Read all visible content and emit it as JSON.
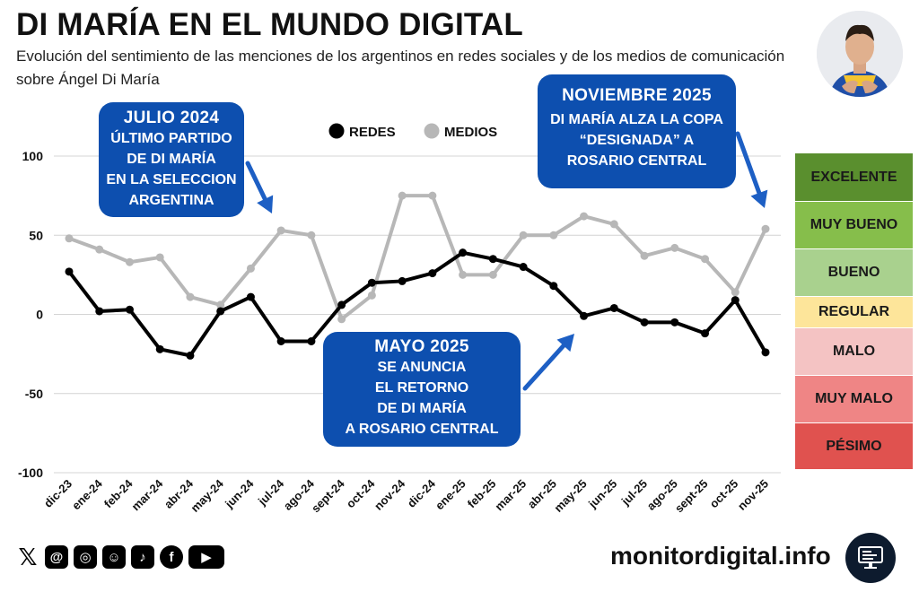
{
  "header": {
    "title": "DI MARÍA EN EL MUNDO DIGITAL",
    "subtitle": "Evolución del sentimiento de las menciones de los argentinos en redes sociales y de los medios de comunicación sobre Ángel Di María"
  },
  "chart_data": {
    "type": "line",
    "categories": [
      "dic-23",
      "ene-24",
      "feb-24",
      "mar-24",
      "abr-24",
      "may-24",
      "jun-24",
      "jul-24",
      "ago-24",
      "sept-24",
      "oct-24",
      "nov-24",
      "dic-24",
      "ene-25",
      "feb-25",
      "mar-25",
      "abr-25",
      "may-25",
      "jun-25",
      "jul-25",
      "ago-25",
      "sept-25",
      "oct-25",
      "nov-25"
    ],
    "series": [
      {
        "name": "REDES",
        "color": "#000000",
        "values": [
          27,
          2,
          3,
          -22,
          -26,
          2,
          11,
          -17,
          -17,
          6,
          20,
          21,
          26,
          39,
          35,
          30,
          18,
          -1,
          4,
          -5,
          -5,
          -12,
          9,
          -24
        ]
      },
      {
        "name": "MEDIOS",
        "color": "#b7b7b7",
        "values": [
          48,
          41,
          33,
          36,
          11,
          6,
          29,
          53,
          50,
          -3,
          12,
          75,
          75,
          25,
          25,
          50,
          50,
          62,
          57,
          37,
          42,
          35,
          14,
          54
        ]
      }
    ],
    "ylim": [
      -100,
      100
    ],
    "yticks": [
      "100",
      "50",
      "0",
      "-50",
      "-100"
    ],
    "grid": true,
    "legend": "top-center"
  },
  "annotations": [
    {
      "heading": "JULIO 2024",
      "lines": [
        "ÚLTIMO PARTIDO",
        "DE DI MARÍA",
        "EN LA SELECCION",
        "ARGENTINA"
      ]
    },
    {
      "heading": "MAYO 2025",
      "lines": [
        "SE ANUNCIA",
        "EL RETORNO",
        "DE DI MARÍA",
        "A ROSARIO CENTRAL"
      ]
    },
    {
      "heading": "NOVIEMBRE 2025",
      "lines": [
        "DI MARÍA ALZA LA COPA",
        "“DESIGNADA” A",
        "ROSARIO CENTRAL"
      ]
    }
  ],
  "scale": [
    {
      "label": "EXCELENTE",
      "color": "#5a8f2e"
    },
    {
      "label": "MUY BUENO",
      "color": "#86be4b"
    },
    {
      "label": "BUENO",
      "color": "#a9d18e"
    },
    {
      "label": "REGULAR",
      "color": "#fde59a"
    },
    {
      "label": "MALO",
      "color": "#f4c3c3"
    },
    {
      "label": "MUY MALO",
      "color": "#ef8585"
    },
    {
      "label": "PÉSIMO",
      "color": "#e0524f"
    }
  ],
  "footer": {
    "site": "monitordigital.info",
    "social_icons": [
      "x-icon",
      "threads-icon",
      "instagram-icon",
      "kick-icon",
      "tiktok-icon",
      "facebook-icon",
      "youtube-icon"
    ]
  }
}
